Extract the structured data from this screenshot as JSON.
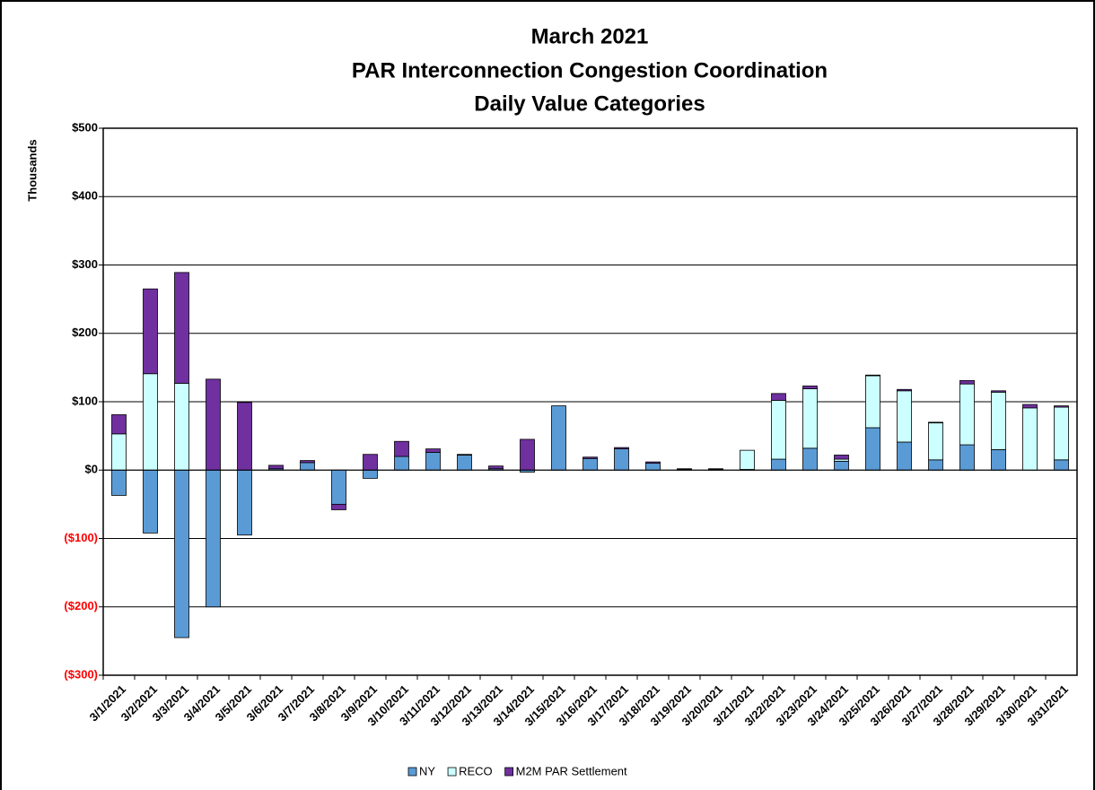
{
  "chart_data": {
    "type": "stacked-bar",
    "title": [
      "March 2021",
      "PAR Interconnection Congestion Coordination",
      "Daily Value Categories"
    ],
    "y_label": "Thousands",
    "categories": [
      "3/1/2021",
      "3/2/2021",
      "3/3/2021",
      "3/4/2021",
      "3/5/2021",
      "3/6/2021",
      "3/7/2021",
      "3/8/2021",
      "3/9/2021",
      "3/10/2021",
      "3/11/2021",
      "3/12/2021",
      "3/13/2021",
      "3/14/2021",
      "3/15/2021",
      "3/16/2021",
      "3/17/2021",
      "3/18/2021",
      "3/19/2021",
      "3/20/2021",
      "3/21/2021",
      "3/22/2021",
      "3/23/2021",
      "3/24/2021",
      "3/25/2021",
      "3/26/2021",
      "3/27/2021",
      "3/28/2021",
      "3/29/2021",
      "3/30/2021",
      "3/31/2021"
    ],
    "series": [
      {
        "name": "NY",
        "color": "#5b9bd5",
        "values": [
          -37,
          -92,
          -245,
          -200,
          -95,
          2,
          11,
          -50,
          -12,
          20,
          26,
          22,
          2,
          -3,
          94,
          17,
          31,
          10,
          1,
          1,
          1,
          16,
          32,
          13,
          62,
          41,
          15,
          37,
          30,
          0,
          15
        ]
      },
      {
        "name": "RECO",
        "color": "#ccffff",
        "values": [
          53,
          141,
          127,
          0,
          0,
          0,
          0,
          0,
          0,
          0,
          0,
          0,
          0,
          0,
          0,
          0,
          0,
          0,
          0,
          0,
          28,
          86,
          87,
          3,
          76,
          75,
          54,
          89,
          84,
          91,
          77
        ]
      },
      {
        "name": "M2M PAR Settlement",
        "color": "#7030a0",
        "values": [
          28,
          124,
          162,
          133,
          99,
          5,
          3,
          -8,
          23,
          22,
          5,
          1,
          4,
          45,
          0,
          2,
          2,
          2,
          1,
          1,
          0,
          10,
          4,
          6,
          1,
          2,
          1,
          5,
          2,
          5,
          2
        ]
      }
    ],
    "ylim": [
      -300,
      500
    ],
    "yticks": [
      {
        "value": -300,
        "label": "($300)"
      },
      {
        "value": -200,
        "label": "($200)"
      },
      {
        "value": -100,
        "label": "($100)"
      },
      {
        "value": 0,
        "label": "$0"
      },
      {
        "value": 100,
        "label": "$100"
      },
      {
        "value": 200,
        "label": "$200"
      },
      {
        "value": 300,
        "label": "$300"
      },
      {
        "value": 400,
        "label": "$400"
      },
      {
        "value": 500,
        "label": "$500"
      }
    ],
    "negative_tick_color": "#ff0000",
    "grid": true,
    "legend": "bottom"
  }
}
